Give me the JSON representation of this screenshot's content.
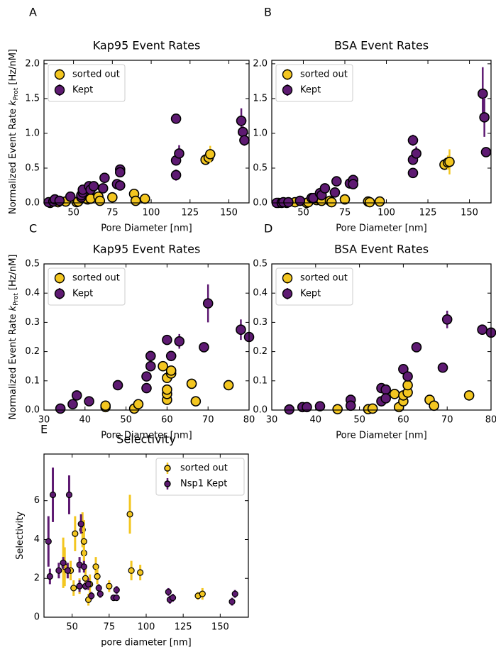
{
  "chart_data": [
    {
      "type": "scatter",
      "panel_label": "A",
      "title": "Kap95 Event Rates",
      "xlabel": "Pore Diameter [nm]",
      "ylabel": {
        "text": "Normalized Event Rate",
        "symbol": "k",
        "subscript": "Prot",
        "unit": "[Hz/nM]"
      },
      "xlim": [
        31,
        163
      ],
      "ylim": [
        0,
        2.05
      ],
      "xticks": [
        50,
        75,
        100,
        125,
        150
      ],
      "yticks": [
        {
          "value": 0,
          "label": "0.0"
        },
        0.5,
        {
          "value": 1,
          "label": "1.0"
        },
        1.5,
        {
          "value": 2,
          "label": "2.0"
        }
      ],
      "legend": "upper left",
      "series": [
        {
          "name": "sorted out",
          "color": "#f3c620",
          "x": [
            35,
            40,
            45,
            52,
            53,
            58,
            59,
            60,
            60,
            61,
            66,
            67,
            75,
            89,
            90,
            96,
            135,
            137,
            138
          ],
          "values": [
            0.0,
            0.01,
            0.02,
            0.01,
            0.02,
            0.15,
            0.05,
            0.11,
            0.13,
            0.06,
            0.09,
            0.03,
            0.08,
            0.13,
            0.03,
            0.06,
            0.62,
            0.65,
            0.7
          ],
          "errors": [
            0.01,
            0.01,
            0.01,
            0.01,
            0.01,
            0.02,
            0.01,
            0.02,
            0.02,
            0.01,
            0.02,
            0.01,
            0.02,
            0.03,
            0.01,
            0.02,
            0.05,
            0.06,
            0.12
          ]
        },
        {
          "name": "Kept",
          "color": "#5e1a72",
          "x": [
            34,
            37,
            38,
            41,
            48,
            55,
            55,
            56,
            56,
            60,
            61,
            63,
            69,
            70,
            78,
            80,
            80,
            80,
            116,
            116,
            116,
            118,
            158,
            159,
            160
          ],
          "values": [
            0.01,
            0.02,
            0.05,
            0.03,
            0.09,
            0.08,
            0.11,
            0.15,
            0.19,
            0.24,
            0.19,
            0.24,
            0.21,
            0.36,
            0.27,
            0.25,
            0.48,
            0.44,
            1.21,
            0.61,
            0.4,
            0.71,
            1.18,
            1.02,
            0.9
          ],
          "errors": [
            0.01,
            0.01,
            0.01,
            0.01,
            0.01,
            0.01,
            0.02,
            0.02,
            0.02,
            0.02,
            0.02,
            0.03,
            0.02,
            0.06,
            0.03,
            0.02,
            0.05,
            0.04,
            0.05,
            0.07,
            0.08,
            0.12,
            0.18,
            0.08,
            0.08
          ]
        }
      ]
    },
    {
      "type": "scatter",
      "panel_label": "B",
      "title": "BSA Event Rates",
      "xlabel": "Pore Diameter [nm]",
      "xlim": [
        31,
        163
      ],
      "ylim": [
        0,
        2.05
      ],
      "xticks": [
        50,
        75,
        100,
        125,
        150
      ],
      "yticks": [
        {
          "value": 0,
          "label": "0.0"
        },
        0.5,
        {
          "value": 1,
          "label": "1.0"
        },
        1.5,
        {
          "value": 2,
          "label": "2.0"
        }
      ],
      "legend": "upper left",
      "series": [
        {
          "name": "sorted out",
          "color": "#f3c620",
          "x": [
            35,
            40,
            45,
            52,
            53,
            58,
            60,
            61,
            66,
            67,
            75,
            89,
            90,
            96,
            135,
            137,
            138
          ],
          "values": [
            0.0,
            0.0,
            0.01,
            0.0,
            0.01,
            0.04,
            0.05,
            0.03,
            0.03,
            0.01,
            0.05,
            0.02,
            0.01,
            0.02,
            0.55,
            0.58,
            0.59
          ],
          "errors": [
            0.01,
            0.01,
            0.01,
            0.01,
            0.01,
            0.01,
            0.01,
            0.01,
            0.01,
            0.01,
            0.01,
            0.01,
            0.01,
            0.01,
            0.08,
            0.1,
            0.18
          ]
        },
        {
          "name": "Kept",
          "color": "#5e1a72",
          "x": [
            34,
            37,
            38,
            41,
            48,
            55,
            56,
            60,
            61,
            63,
            69,
            70,
            78,
            80,
            80,
            116,
            116,
            116,
            118,
            158,
            159,
            160
          ],
          "values": [
            0.0,
            0.0,
            0.01,
            0.01,
            0.03,
            0.07,
            0.07,
            0.14,
            0.11,
            0.21,
            0.15,
            0.31,
            0.28,
            0.33,
            0.27,
            0.9,
            0.62,
            0.43,
            0.71,
            1.57,
            1.23,
            0.73
          ],
          "errors": [
            0.01,
            0.01,
            0.01,
            0.01,
            0.01,
            0.01,
            0.01,
            0.02,
            0.02,
            0.02,
            0.02,
            0.03,
            0.03,
            0.03,
            0.03,
            0.08,
            0.06,
            0.07,
            0.1,
            0.38,
            0.28,
            0.04
          ]
        }
      ]
    },
    {
      "type": "scatter",
      "panel_label": "C",
      "title": "Kap95 Event Rates",
      "xlabel": "Pore Diameter [nm]",
      "ylabel": {
        "text": "Normalized Event Rate",
        "symbol": "k",
        "subscript": "Prot",
        "unit": "[Hz/nM]"
      },
      "xlim": [
        30,
        80
      ],
      "ylim": [
        0,
        0.5
      ],
      "xticks": [
        30,
        40,
        50,
        60,
        70,
        80
      ],
      "yticks": [
        {
          "value": 0,
          "label": "0.0"
        },
        0.1,
        0.2,
        0.3,
        0.4,
        0.5
      ],
      "legend": "upper left",
      "series": [
        {
          "name": "sorted out",
          "color": "#f3c620",
          "x": [
            45,
            45,
            52,
            53,
            59,
            60,
            60,
            60,
            60,
            61,
            61,
            66,
            67,
            75
          ],
          "values": [
            0.01,
            0.015,
            0.005,
            0.02,
            0.15,
            0.035,
            0.055,
            0.07,
            0.11,
            0.125,
            0.135,
            0.09,
            0.03,
            0.085
          ],
          "errors": [
            0.003,
            0.003,
            0.003,
            0.004,
            0.01,
            0.005,
            0.005,
            0.006,
            0.008,
            0.01,
            0.01,
            0.006,
            0.004,
            0.006
          ]
        },
        {
          "name": "Kept",
          "color": "#5e1a72",
          "x": [
            34,
            37,
            38,
            41,
            48,
            55,
            55,
            56,
            56,
            60,
            61,
            63,
            69,
            70,
            78,
            80
          ],
          "values": [
            0.005,
            0.02,
            0.05,
            0.03,
            0.085,
            0.075,
            0.115,
            0.15,
            0.185,
            0.24,
            0.185,
            0.235,
            0.215,
            0.365,
            0.275,
            0.25
          ],
          "errors": [
            0.003,
            0.004,
            0.005,
            0.005,
            0.006,
            0.007,
            0.008,
            0.01,
            0.01,
            0.015,
            0.015,
            0.025,
            0.008,
            0.065,
            0.035,
            0.015
          ]
        }
      ]
    },
    {
      "type": "scatter",
      "panel_label": "D",
      "title": "BSA Event Rates",
      "xlabel": "Pore Diameter [nm]",
      "xlim": [
        30,
        80
      ],
      "ylim": [
        0,
        0.5
      ],
      "xticks": [
        30,
        40,
        50,
        60,
        70,
        80
      ],
      "yticks": [
        {
          "value": 0,
          "label": "0.0"
        },
        0.1,
        0.2,
        0.3,
        0.4,
        0.5
      ],
      "legend": "upper left",
      "series": [
        {
          "name": "sorted out",
          "color": "#f3c620",
          "x": [
            45,
            52,
            53,
            58,
            59,
            60,
            60,
            61,
            61,
            66,
            67,
            75
          ],
          "values": [
            0.003,
            0.003,
            0.005,
            0.055,
            0.01,
            0.03,
            0.05,
            0.06,
            0.085,
            0.035,
            0.015,
            0.05
          ],
          "errors": [
            0.002,
            0.002,
            0.002,
            0.005,
            0.003,
            0.004,
            0.004,
            0.005,
            0.006,
            0.004,
            0.003,
            0.004
          ]
        },
        {
          "name": "Kept",
          "color": "#5e1a72",
          "x": [
            34,
            37,
            38,
            41,
            48,
            48,
            55,
            55,
            56,
            56,
            60,
            61,
            63,
            69,
            70,
            78,
            80
          ],
          "values": [
            0.002,
            0.01,
            0.01,
            0.013,
            0.035,
            0.015,
            0.075,
            0.03,
            0.07,
            0.04,
            0.14,
            0.115,
            0.215,
            0.145,
            0.31,
            0.275,
            0.265
          ],
          "errors": [
            0.002,
            0.003,
            0.003,
            0.003,
            0.004,
            0.003,
            0.005,
            0.004,
            0.005,
            0.004,
            0.008,
            0.008,
            0.012,
            0.01,
            0.03,
            0.01,
            0.01
          ]
        }
      ]
    },
    {
      "type": "scatter",
      "panel_label": "E",
      "title": "Selectivity",
      "xlabel": "pore diameter [nm]",
      "ylabel": {
        "text": "Selectivity"
      },
      "xlim": [
        31,
        169
      ],
      "ylim": [
        0,
        8.4
      ],
      "xticks": [
        50,
        75,
        100,
        125,
        150
      ],
      "yticks": [
        0,
        2,
        4,
        6
      ],
      "legend": "upper right",
      "marker": "small",
      "series": [
        {
          "name": "sorted out",
          "color": "#f3c620",
          "x": [
            44,
            45,
            49,
            51,
            52,
            55,
            57,
            58,
            58,
            59,
            61,
            62,
            66,
            67,
            75,
            89,
            90,
            96,
            135,
            138
          ],
          "values": [
            2.8,
            2.6,
            2.4,
            1.5,
            4.3,
            1.6,
            4.5,
            3.3,
            3.9,
            2.0,
            0.9,
            1.7,
            2.6,
            2.1,
            1.6,
            5.3,
            2.4,
            2.3,
            1.1,
            1.2
          ],
          "errors": [
            1.3,
            1.0,
            0.5,
            0.4,
            0.9,
            0.4,
            0.9,
            0.8,
            1.1,
            0.5,
            0.3,
            0.5,
            0.5,
            0.4,
            0.3,
            1.0,
            0.5,
            0.4,
            0.2,
            0.3
          ]
        },
        {
          "name": "Nsp1 Kept",
          "color": "#5e1a72",
          "x": [
            34,
            35,
            37,
            41,
            44,
            47,
            48,
            55,
            55,
            56,
            58,
            59,
            61,
            63,
            68,
            69,
            78,
            80,
            80,
            115,
            116,
            118,
            158,
            160
          ],
          "values": [
            3.9,
            2.1,
            6.3,
            2.4,
            2.8,
            2.4,
            6.3,
            2.7,
            1.6,
            4.8,
            2.6,
            1.6,
            1.7,
            1.1,
            1.5,
            1.2,
            1.0,
            1.0,
            1.4,
            1.3,
            0.9,
            1.0,
            0.8,
            1.2
          ],
          "errors": [
            1.3,
            0.4,
            1.4,
            0.4,
            0.3,
            0.4,
            1.0,
            0.4,
            0.3,
            0.5,
            0.3,
            0.2,
            0.3,
            0.2,
            0.2,
            0.2,
            0.1,
            0.1,
            0.2,
            0.2,
            0.2,
            0.2,
            0.2,
            0.2
          ]
        }
      ]
    }
  ]
}
